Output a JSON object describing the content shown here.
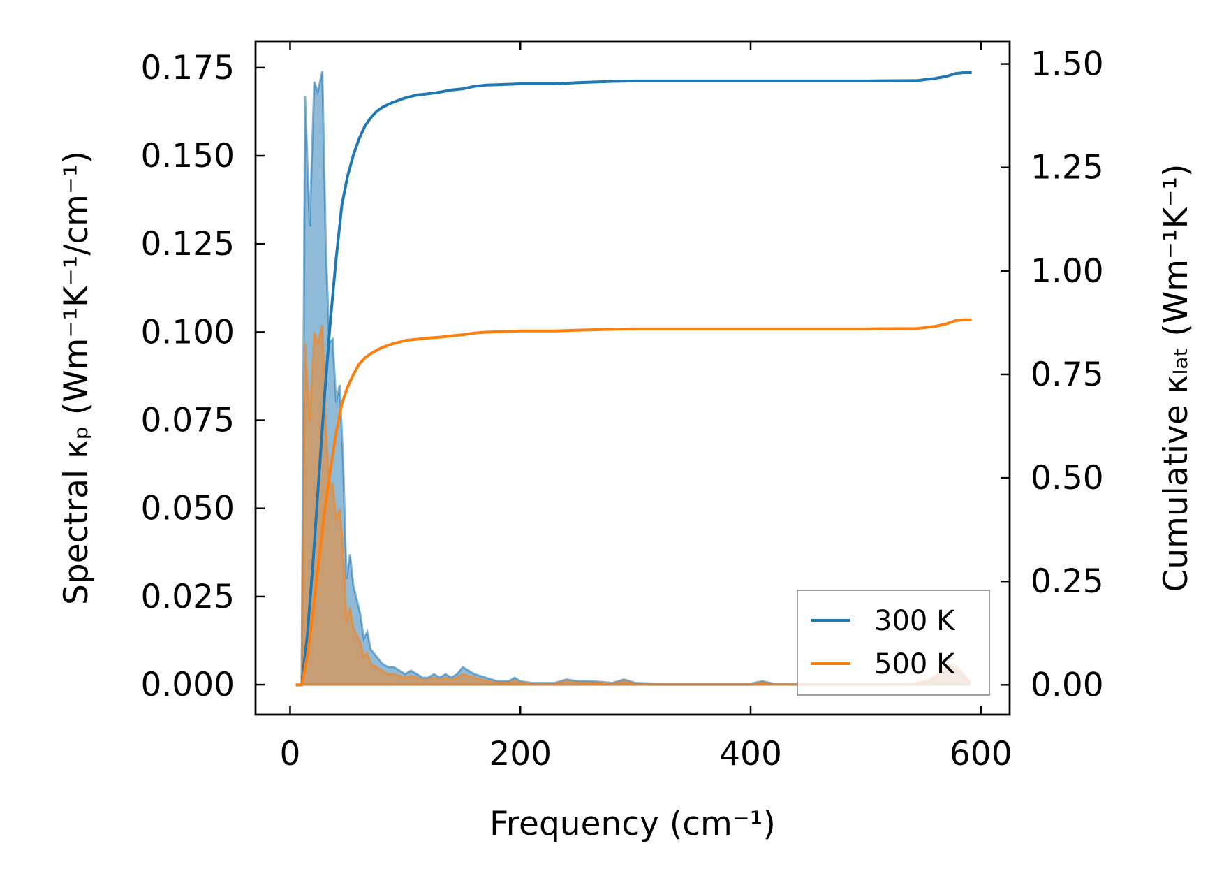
{
  "chart_data": {
    "type": "area",
    "xlabel": "Frequency (cm⁻¹)",
    "ylabel_left": "Spectral κₚ (Wm⁻¹K⁻¹/cm⁻¹)",
    "ylabel_right": "Cumulative κₗₐₜ (Wm⁻¹K⁻¹)",
    "xlim": [
      -30,
      625
    ],
    "ylim_left": [
      -0.0085,
      0.1825
    ],
    "ylim_right": [
      -0.072,
      1.555
    ],
    "x_ticks": [
      0,
      200,
      400,
      600
    ],
    "x_tick_labels": [
      "0",
      "200",
      "400",
      "600"
    ],
    "y_left_ticks": [
      0.0,
      0.025,
      0.05,
      0.075,
      0.1,
      0.125,
      0.15,
      0.175
    ],
    "y_left_tick_labels": [
      "0.000",
      "0.025",
      "0.050",
      "0.075",
      "0.100",
      "0.125",
      "0.150",
      "0.175"
    ],
    "y_right_ticks": [
      0.0,
      0.25,
      0.5,
      0.75,
      1.0,
      1.25,
      1.5
    ],
    "y_right_tick_labels": [
      "0.00",
      "0.25",
      "0.50",
      "0.75",
      "1.00",
      "1.25",
      "1.50"
    ],
    "legend_position": "lower-right",
    "grid": false,
    "series": [
      {
        "name": "300 K",
        "color": "#1f77b4",
        "spectral": [
          [
            5,
            0
          ],
          [
            10,
            0
          ],
          [
            13,
            0.167
          ],
          [
            17,
            0.13
          ],
          [
            21,
            0.171
          ],
          [
            24,
            0.168
          ],
          [
            28,
            0.174
          ],
          [
            31,
            0.125
          ],
          [
            34,
            0.097
          ],
          [
            37,
            0.098
          ],
          [
            40,
            0.08
          ],
          [
            43,
            0.085
          ],
          [
            46,
            0.064
          ],
          [
            49,
            0.03
          ],
          [
            52,
            0.037
          ],
          [
            55,
            0.028
          ],
          [
            58,
            0.024
          ],
          [
            61,
            0.02
          ],
          [
            64,
            0.013
          ],
          [
            67,
            0.015
          ],
          [
            70,
            0.01
          ],
          [
            75,
            0.008
          ],
          [
            80,
            0.006
          ],
          [
            85,
            0.005
          ],
          [
            90,
            0.005
          ],
          [
            95,
            0.004
          ],
          [
            100,
            0.003
          ],
          [
            105,
            0.004
          ],
          [
            110,
            0.003
          ],
          [
            115,
            0.002
          ],
          [
            120,
            0.002
          ],
          [
            125,
            0.003
          ],
          [
            130,
            0.002
          ],
          [
            135,
            0.003
          ],
          [
            140,
            0.002
          ],
          [
            145,
            0.003
          ],
          [
            150,
            0.005
          ],
          [
            155,
            0.004
          ],
          [
            160,
            0.003
          ],
          [
            170,
            0.002
          ],
          [
            180,
            0.001
          ],
          [
            190,
            0.001
          ],
          [
            195,
            0.002
          ],
          [
            200,
            0.001
          ],
          [
            210,
            0.0005
          ],
          [
            230,
            0.0005
          ],
          [
            240,
            0.0015
          ],
          [
            250,
            0.001
          ],
          [
            260,
            0.001
          ],
          [
            270,
            0.0008
          ],
          [
            280,
            0.0005
          ],
          [
            290,
            0.0015
          ],
          [
            300,
            0.0005
          ],
          [
            320,
            0.0003
          ],
          [
            360,
            0.0003
          ],
          [
            400,
            0.0003
          ],
          [
            410,
            0.001
          ],
          [
            420,
            0.0003
          ],
          [
            450,
            0.0002
          ],
          [
            500,
            0.0002
          ],
          [
            540,
            0.0002
          ],
          [
            555,
            0.001
          ],
          [
            565,
            0.003
          ],
          [
            575,
            0.005
          ],
          [
            580,
            0.004
          ],
          [
            590,
            0.001
          ]
        ],
        "cumulative": [
          [
            5,
            0
          ],
          [
            10,
            0
          ],
          [
            15,
            0.12
          ],
          [
            20,
            0.3
          ],
          [
            25,
            0.5
          ],
          [
            30,
            0.7
          ],
          [
            35,
            0.88
          ],
          [
            40,
            1.03
          ],
          [
            45,
            1.16
          ],
          [
            50,
            1.23
          ],
          [
            55,
            1.28
          ],
          [
            60,
            1.32
          ],
          [
            65,
            1.35
          ],
          [
            70,
            1.37
          ],
          [
            75,
            1.385
          ],
          [
            80,
            1.395
          ],
          [
            85,
            1.402
          ],
          [
            90,
            1.408
          ],
          [
            95,
            1.413
          ],
          [
            100,
            1.418
          ],
          [
            110,
            1.425
          ],
          [
            120,
            1.428
          ],
          [
            130,
            1.432
          ],
          [
            140,
            1.437
          ],
          [
            150,
            1.44
          ],
          [
            160,
            1.446
          ],
          [
            170,
            1.449
          ],
          [
            180,
            1.45
          ],
          [
            190,
            1.451
          ],
          [
            200,
            1.452
          ],
          [
            230,
            1.452
          ],
          [
            250,
            1.455
          ],
          [
            280,
            1.458
          ],
          [
            300,
            1.459
          ],
          [
            350,
            1.459
          ],
          [
            400,
            1.459
          ],
          [
            450,
            1.459
          ],
          [
            500,
            1.459
          ],
          [
            545,
            1.46
          ],
          [
            560,
            1.465
          ],
          [
            570,
            1.47
          ],
          [
            578,
            1.477
          ],
          [
            585,
            1.479
          ],
          [
            592,
            1.479
          ]
        ]
      },
      {
        "name": "500 K",
        "color": "#ff7f0e",
        "spectral": [
          [
            5,
            0
          ],
          [
            10,
            0
          ],
          [
            13,
            0.097
          ],
          [
            17,
            0.075
          ],
          [
            21,
            0.1
          ],
          [
            24,
            0.097
          ],
          [
            28,
            0.102
          ],
          [
            31,
            0.073
          ],
          [
            34,
            0.057
          ],
          [
            37,
            0.057
          ],
          [
            40,
            0.047
          ],
          [
            43,
            0.05
          ],
          [
            46,
            0.038
          ],
          [
            49,
            0.018
          ],
          [
            52,
            0.022
          ],
          [
            55,
            0.016
          ],
          [
            58,
            0.014
          ],
          [
            61,
            0.012
          ],
          [
            64,
            0.008
          ],
          [
            67,
            0.009
          ],
          [
            70,
            0.006
          ],
          [
            75,
            0.005
          ],
          [
            80,
            0.004
          ],
          [
            85,
            0.003
          ],
          [
            90,
            0.003
          ],
          [
            95,
            0.0025
          ],
          [
            100,
            0.002
          ],
          [
            105,
            0.0025
          ],
          [
            110,
            0.002
          ],
          [
            115,
            0.0015
          ],
          [
            120,
            0.0015
          ],
          [
            125,
            0.002
          ],
          [
            130,
            0.0015
          ],
          [
            135,
            0.002
          ],
          [
            140,
            0.0015
          ],
          [
            145,
            0.002
          ],
          [
            150,
            0.003
          ],
          [
            155,
            0.0025
          ],
          [
            160,
            0.002
          ],
          [
            170,
            0.0012
          ],
          [
            180,
            0.0006
          ],
          [
            190,
            0.0006
          ],
          [
            195,
            0.0012
          ],
          [
            200,
            0.0006
          ],
          [
            210,
            0.0003
          ],
          [
            230,
            0.0003
          ],
          [
            240,
            0.001
          ],
          [
            250,
            0.0006
          ],
          [
            260,
            0.0006
          ],
          [
            270,
            0.0005
          ],
          [
            280,
            0.0003
          ],
          [
            290,
            0.001
          ],
          [
            300,
            0.0003
          ],
          [
            320,
            0.0002
          ],
          [
            360,
            0.0002
          ],
          [
            400,
            0.0002
          ],
          [
            410,
            0.0006
          ],
          [
            420,
            0.0002
          ],
          [
            450,
            0.0001
          ],
          [
            500,
            0.0001
          ],
          [
            540,
            0.0002
          ],
          [
            555,
            0.0015
          ],
          [
            565,
            0.0035
          ],
          [
            575,
            0.006
          ],
          [
            580,
            0.005
          ],
          [
            590,
            0.001
          ]
        ],
        "cumulative": [
          [
            5,
            0
          ],
          [
            10,
            0
          ],
          [
            15,
            0.07
          ],
          [
            20,
            0.18
          ],
          [
            25,
            0.3
          ],
          [
            30,
            0.42
          ],
          [
            35,
            0.52
          ],
          [
            40,
            0.61
          ],
          [
            45,
            0.68
          ],
          [
            50,
            0.72
          ],
          [
            55,
            0.75
          ],
          [
            60,
            0.775
          ],
          [
            65,
            0.79
          ],
          [
            70,
            0.8
          ],
          [
            75,
            0.808
          ],
          [
            80,
            0.815
          ],
          [
            85,
            0.82
          ],
          [
            90,
            0.825
          ],
          [
            95,
            0.828
          ],
          [
            100,
            0.832
          ],
          [
            110,
            0.835
          ],
          [
            120,
            0.838
          ],
          [
            130,
            0.84
          ],
          [
            140,
            0.843
          ],
          [
            150,
            0.846
          ],
          [
            160,
            0.85
          ],
          [
            170,
            0.852
          ],
          [
            180,
            0.853
          ],
          [
            190,
            0.854
          ],
          [
            200,
            0.855
          ],
          [
            230,
            0.855
          ],
          [
            250,
            0.857
          ],
          [
            280,
            0.859
          ],
          [
            300,
            0.86
          ],
          [
            350,
            0.86
          ],
          [
            400,
            0.86
          ],
          [
            450,
            0.86
          ],
          [
            500,
            0.86
          ],
          [
            545,
            0.861
          ],
          [
            560,
            0.866
          ],
          [
            570,
            0.872
          ],
          [
            578,
            0.88
          ],
          [
            585,
            0.882
          ],
          [
            592,
            0.882
          ]
        ]
      }
    ]
  }
}
